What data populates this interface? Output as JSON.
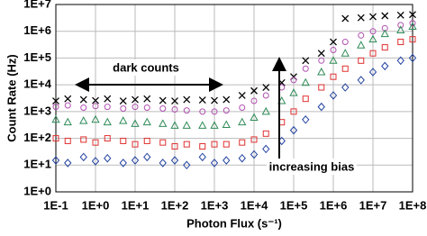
{
  "chart_data": {
    "type": "scatter",
    "x_label": "Photon Flux (s⁻¹)",
    "y_label": "Count Rate (Hz)",
    "annotations": [
      "dark counts",
      "increasing bias"
    ],
    "log_x": true,
    "log_y": true,
    "grid": true,
    "xlim": [
      0.1,
      100000000
    ],
    "ylim": [
      1,
      10000000
    ],
    "xticks": [
      {
        "value": 0.1,
        "label": "1E-1"
      },
      {
        "value": 1,
        "label": "1E+0"
      },
      {
        "value": 10,
        "label": "1E+1"
      },
      {
        "value": 100,
        "label": "1E+2"
      },
      {
        "value": 1000,
        "label": "1E+3"
      },
      {
        "value": 10000,
        "label": "1E+4"
      },
      {
        "value": 100000,
        "label": "1E+5"
      },
      {
        "value": 1000000,
        "label": "1E+6"
      },
      {
        "value": 10000000,
        "label": "1E+7"
      },
      {
        "value": 100000000,
        "label": "1E+8"
      }
    ],
    "yticks": [
      {
        "value": 1,
        "label": "1E+0"
      },
      {
        "value": 10,
        "label": "1E+1"
      },
      {
        "value": 100,
        "label": "1E+2"
      },
      {
        "value": 1000,
        "label": "1E+3"
      },
      {
        "value": 10000,
        "label": "1E+4"
      },
      {
        "value": 100000,
        "label": "1E+5"
      },
      {
        "value": 1000000,
        "label": "1E+6"
      },
      {
        "value": 10000000,
        "label": "1E+7"
      }
    ],
    "x": [
      0.1,
      0.2,
      0.5,
      1,
      2,
      5,
      10,
      20,
      50,
      100,
      200,
      500,
      1000,
      2000,
      5000,
      10000,
      20000,
      50000,
      100000,
      200000,
      500000,
      1000000,
      2000000,
      5000000,
      10000000,
      20000000,
      50000000,
      100000000
    ],
    "series": [
      {
        "color": "#000000",
        "marker": "x",
        "values": [
          2500,
          3000,
          2800,
          2600,
          3000,
          2500,
          2800,
          3000,
          2600,
          2500,
          2800,
          2700,
          2600,
          2800,
          4000,
          6000,
          8000,
          12000,
          20000,
          80000,
          150000,
          400000,
          3000000,
          3200000,
          3500000,
          3800000,
          4000000,
          4200000
        ]
      },
      {
        "color": "#b050b0",
        "marker": "circle",
        "values": [
          1500,
          1700,
          1400,
          1600,
          1500,
          1300,
          1500,
          1400,
          1300,
          1200,
          1100,
          1000,
          1000,
          1100,
          1400,
          2500,
          4000,
          8000,
          15000,
          40000,
          80000,
          200000,
          400000,
          700000,
          1000000,
          1300000,
          1700000,
          2000000
        ]
      },
      {
        "color": "#2e8b57",
        "marker": "triangle",
        "values": [
          500,
          400,
          450,
          500,
          400,
          450,
          350,
          400,
          350,
          300,
          300,
          300,
          300,
          320,
          400,
          600,
          1000,
          2500,
          5000,
          12000,
          30000,
          80000,
          150000,
          300000,
          500000,
          800000,
          1100000,
          1500000
        ]
      },
      {
        "color": "#e03030",
        "marker": "square",
        "values": [
          100,
          80,
          90,
          70,
          100,
          80,
          60,
          80,
          70,
          50,
          60,
          50,
          60,
          60,
          70,
          90,
          150,
          400,
          1000,
          3000,
          8000,
          20000,
          40000,
          80000,
          150000,
          250000,
          400000,
          500000
        ]
      },
      {
        "color": "#2040a0",
        "marker": "diamond",
        "values": [
          15,
          12,
          20,
          14,
          18,
          12,
          15,
          20,
          12,
          15,
          10,
          20,
          12,
          15,
          18,
          25,
          40,
          80,
          200,
          500,
          1500,
          4000,
          8000,
          15000,
          30000,
          50000,
          80000,
          100000
        ]
      }
    ]
  }
}
